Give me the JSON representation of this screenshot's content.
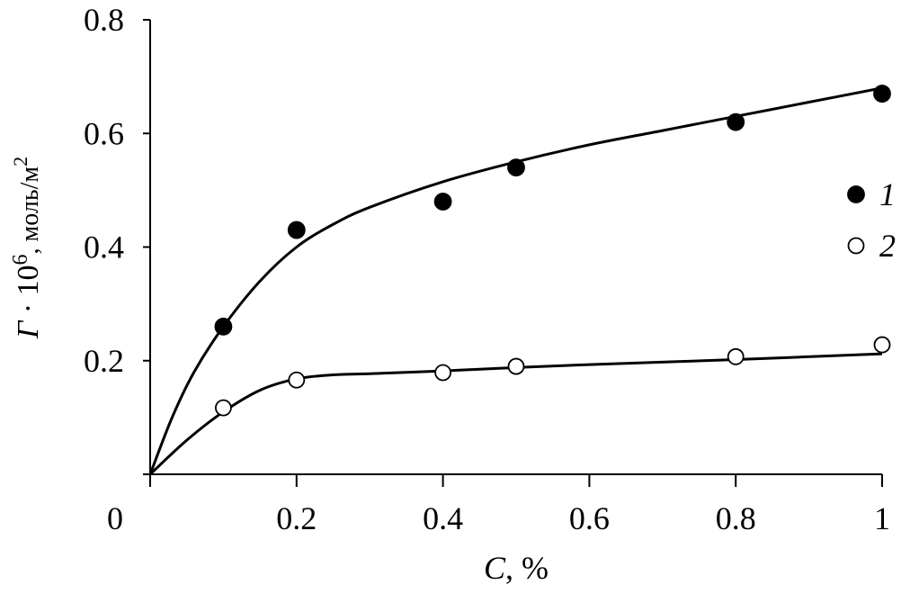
{
  "chart_data": {
    "type": "scatter",
    "xlabel": "C, %",
    "ylabel": "Γ · 10⁶, моль/м²",
    "ylabel_parts": {
      "symbol": "Г",
      "dot": " · 10",
      "exp": "6",
      "unit": ", моль/м",
      "unit_exp": "2"
    },
    "xlabel_parts": {
      "symbol": "C",
      "unit": ", %"
    },
    "xlim": [
      0,
      1
    ],
    "ylim": [
      0,
      0.8
    ],
    "x_ticks": [
      0,
      0.2,
      0.4,
      0.6,
      0.8,
      1
    ],
    "x_tick_labels": [
      "0",
      "0.2",
      "0.4",
      "0.6",
      "0.8",
      "1"
    ],
    "y_ticks": [
      0.2,
      0.4,
      0.6,
      0.8
    ],
    "y_tick_labels": [
      "0.2",
      "0.4",
      "0.6",
      "0.8"
    ],
    "grid": false,
    "legend_placement": "right",
    "series": [
      {
        "name": "1",
        "marker": "filled-circle",
        "x": [
          0.1,
          0.2,
          0.4,
          0.5,
          0.8,
          1.0
        ],
        "y": [
          0.26,
          0.43,
          0.48,
          0.54,
          0.62,
          0.67
        ],
        "fit_curve": {
          "x": [
            0,
            0.03,
            0.06,
            0.1,
            0.15,
            0.2,
            0.25,
            0.3,
            0.4,
            0.5,
            0.6,
            0.7,
            0.8,
            0.9,
            1.0
          ],
          "y": [
            0,
            0.1,
            0.18,
            0.26,
            0.34,
            0.4,
            0.44,
            0.47,
            0.515,
            0.55,
            0.58,
            0.605,
            0.63,
            0.655,
            0.68
          ]
        }
      },
      {
        "name": "2",
        "marker": "open-circle",
        "x": [
          0.1,
          0.2,
          0.4,
          0.5,
          0.8,
          1.0
        ],
        "y": [
          0.117,
          0.166,
          0.179,
          0.19,
          0.207,
          0.228
        ],
        "fit_curve": {
          "x": [
            0,
            0.05,
            0.1,
            0.15,
            0.2,
            0.25,
            0.3,
            0.4,
            0.5,
            0.6,
            0.8,
            1.0
          ],
          "y": [
            0,
            0.06,
            0.11,
            0.148,
            0.168,
            0.175,
            0.177,
            0.182,
            0.188,
            0.193,
            0.202,
            0.212
          ]
        }
      }
    ]
  }
}
